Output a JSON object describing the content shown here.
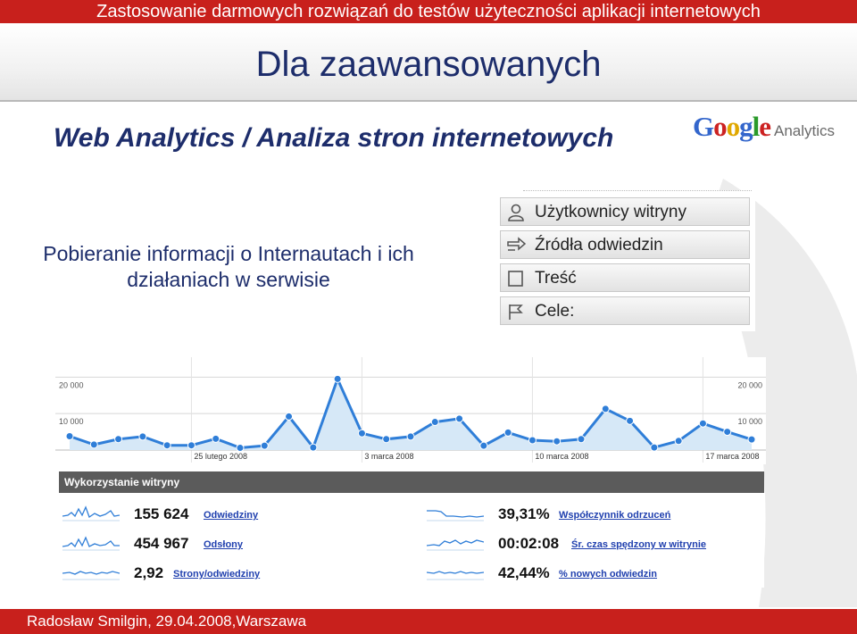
{
  "slide": {
    "header": "Zastosowanie darmowych rozwiązań do testów użyteczności aplikacji internetowych",
    "subtitle": "Dla zaawansowanych",
    "title": "Web Analytics / Analiza stron internetowych",
    "description": "Pobieranie informacji o Internautach i ich działaniach w  serwisie",
    "footer": "Radosław Smilgin, 29.04.2008,Warszawa"
  },
  "logo": {
    "google": "Google",
    "analytics": "Analytics"
  },
  "ga_menu": [
    {
      "label": "Użytkownicy witryny",
      "icon": "user-icon"
    },
    {
      "label": "Źródła odwiedzin",
      "icon": "arrows-icon"
    },
    {
      "label": "Treść",
      "icon": "page-icon"
    },
    {
      "label": "Cele:",
      "icon": "flag-icon"
    }
  ],
  "chart_data": {
    "type": "line",
    "y_tick_labels": [
      "20 000",
      "10 000"
    ],
    "ylim": [
      0,
      24000
    ],
    "x_tick_labels": [
      "25 lutego 2008",
      "3 marca 2008",
      "10 marca 2008",
      "17 marca 2008"
    ],
    "series": [
      {
        "values": [
          3800,
          1500,
          3000,
          3700,
          1300,
          1300,
          3100,
          600,
          1200,
          9200,
          700,
          19500,
          4600,
          3000,
          3700,
          7700,
          8600,
          1200,
          4800,
          2700,
          2400,
          3000,
          11300,
          8000,
          700,
          2500,
          7300,
          5000,
          2900
        ]
      }
    ],
    "colors": {
      "line": "#2f7ed8",
      "fill": "#d6e8f7"
    },
    "grid": true
  },
  "usage": {
    "title": "Wykorzystanie witryny",
    "metrics": [
      {
        "value": "155 624",
        "label": "Odwiedziny"
      },
      {
        "value": "454 967",
        "label": "Odsłony"
      },
      {
        "value": "2,92",
        "label": "Strony/odwiedziny"
      },
      {
        "value": "39,31%",
        "label": "Współczynnik odrzuceń"
      },
      {
        "value": "00:02:08",
        "label": "Śr. czas spędzony w witrynie"
      },
      {
        "value": "42,44%",
        "label": "% nowych odwiedzin"
      }
    ]
  },
  "colors": {
    "accent": "#c8201c",
    "text": "#1d2d6b",
    "link": "#1f3fae"
  }
}
